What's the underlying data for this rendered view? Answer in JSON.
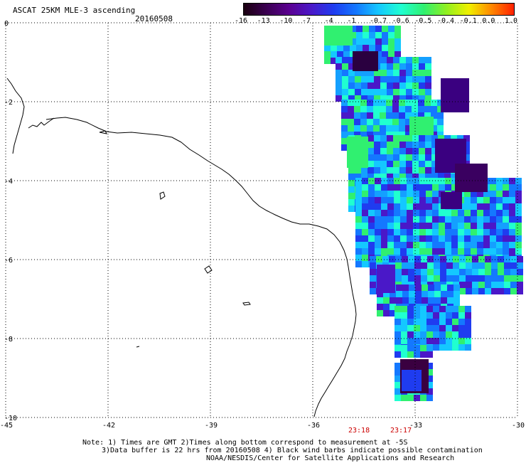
{
  "header": {
    "title": "ASCAT 25KM MLE-3 ascending",
    "date": "20160508"
  },
  "colorbar": {
    "labels": [
      "-16",
      "-13",
      "-10",
      "-7",
      "-4",
      "-1",
      "-0.7",
      "-0.6",
      "-0.5",
      "-0.4",
      "-0.1",
      "0.0",
      "1.0"
    ],
    "colors": [
      "#1a0010",
      "#3a0050",
      "#5a0090",
      "#4a18c8",
      "#1f3cf0",
      "#1478ff",
      "#14c8ff",
      "#20ffd0",
      "#30f070",
      "#90f020",
      "#f0f000",
      "#ff8800",
      "#ff2000"
    ]
  },
  "axes": {
    "x_labels": [
      "-45",
      "-42",
      "-39",
      "-36",
      "-33",
      "-30"
    ],
    "y_labels": [
      "0",
      "-2",
      "-4",
      "-6",
      "-8",
      "-10"
    ]
  },
  "pass_times": [
    "23:18",
    "23:17"
  ],
  "notes": {
    "line1": "Note: 1) Times are GMT 2)Times along bottom correspond to measurement at -5S",
    "line2": "3)Data buffer is 22 hrs from 20160508 4) Black wind barbs indicate possible contamination",
    "line3": "NOAA/NESDIS/Center for Satellite Applications and Research"
  }
}
